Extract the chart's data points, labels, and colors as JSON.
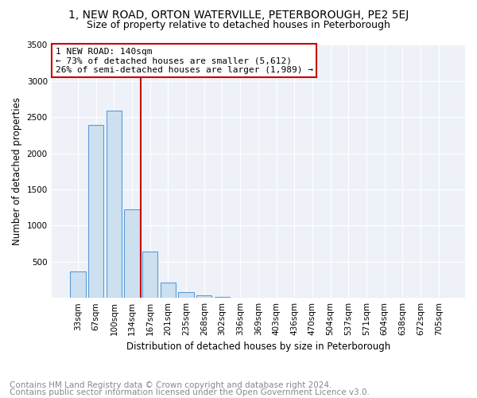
{
  "title1": "1, NEW ROAD, ORTON WATERVILLE, PETERBOROUGH, PE2 5EJ",
  "title2": "Size of property relative to detached houses in Peterborough",
  "xlabel": "Distribution of detached houses by size in Peterborough",
  "ylabel": "Number of detached properties",
  "categories": [
    "33sqm",
    "67sqm",
    "100sqm",
    "134sqm",
    "167sqm",
    "201sqm",
    "235sqm",
    "268sqm",
    "302sqm",
    "336sqm",
    "369sqm",
    "403sqm",
    "436sqm",
    "470sqm",
    "504sqm",
    "537sqm",
    "571sqm",
    "604sqm",
    "638sqm",
    "672sqm",
    "705sqm"
  ],
  "values": [
    370,
    2390,
    2590,
    1230,
    640,
    215,
    80,
    30,
    10,
    5,
    3,
    2,
    1,
    1,
    0,
    0,
    0,
    0,
    0,
    0,
    0
  ],
  "bar_color": "#cce0f0",
  "bar_edge_color": "#5b9bd5",
  "property_line_x": 3.5,
  "annotation_text": "1 NEW ROAD: 140sqm\n← 73% of detached houses are smaller (5,612)\n26% of semi-detached houses are larger (1,989) →",
  "annotation_box_color": "white",
  "annotation_box_edge_color": "#cc0000",
  "line_color": "#cc0000",
  "ylim": [
    0,
    3500
  ],
  "yticks": [
    0,
    500,
    1000,
    1500,
    2000,
    2500,
    3000,
    3500
  ],
  "footer1": "Contains HM Land Registry data © Crown copyright and database right 2024.",
  "footer2": "Contains public sector information licensed under the Open Government Licence v3.0.",
  "bg_color": "#eef2f8",
  "title_fontsize": 10,
  "subtitle_fontsize": 9,
  "axis_fontsize": 8.5,
  "tick_fontsize": 7.5,
  "footer_fontsize": 7.5,
  "annotation_fontsize": 8
}
